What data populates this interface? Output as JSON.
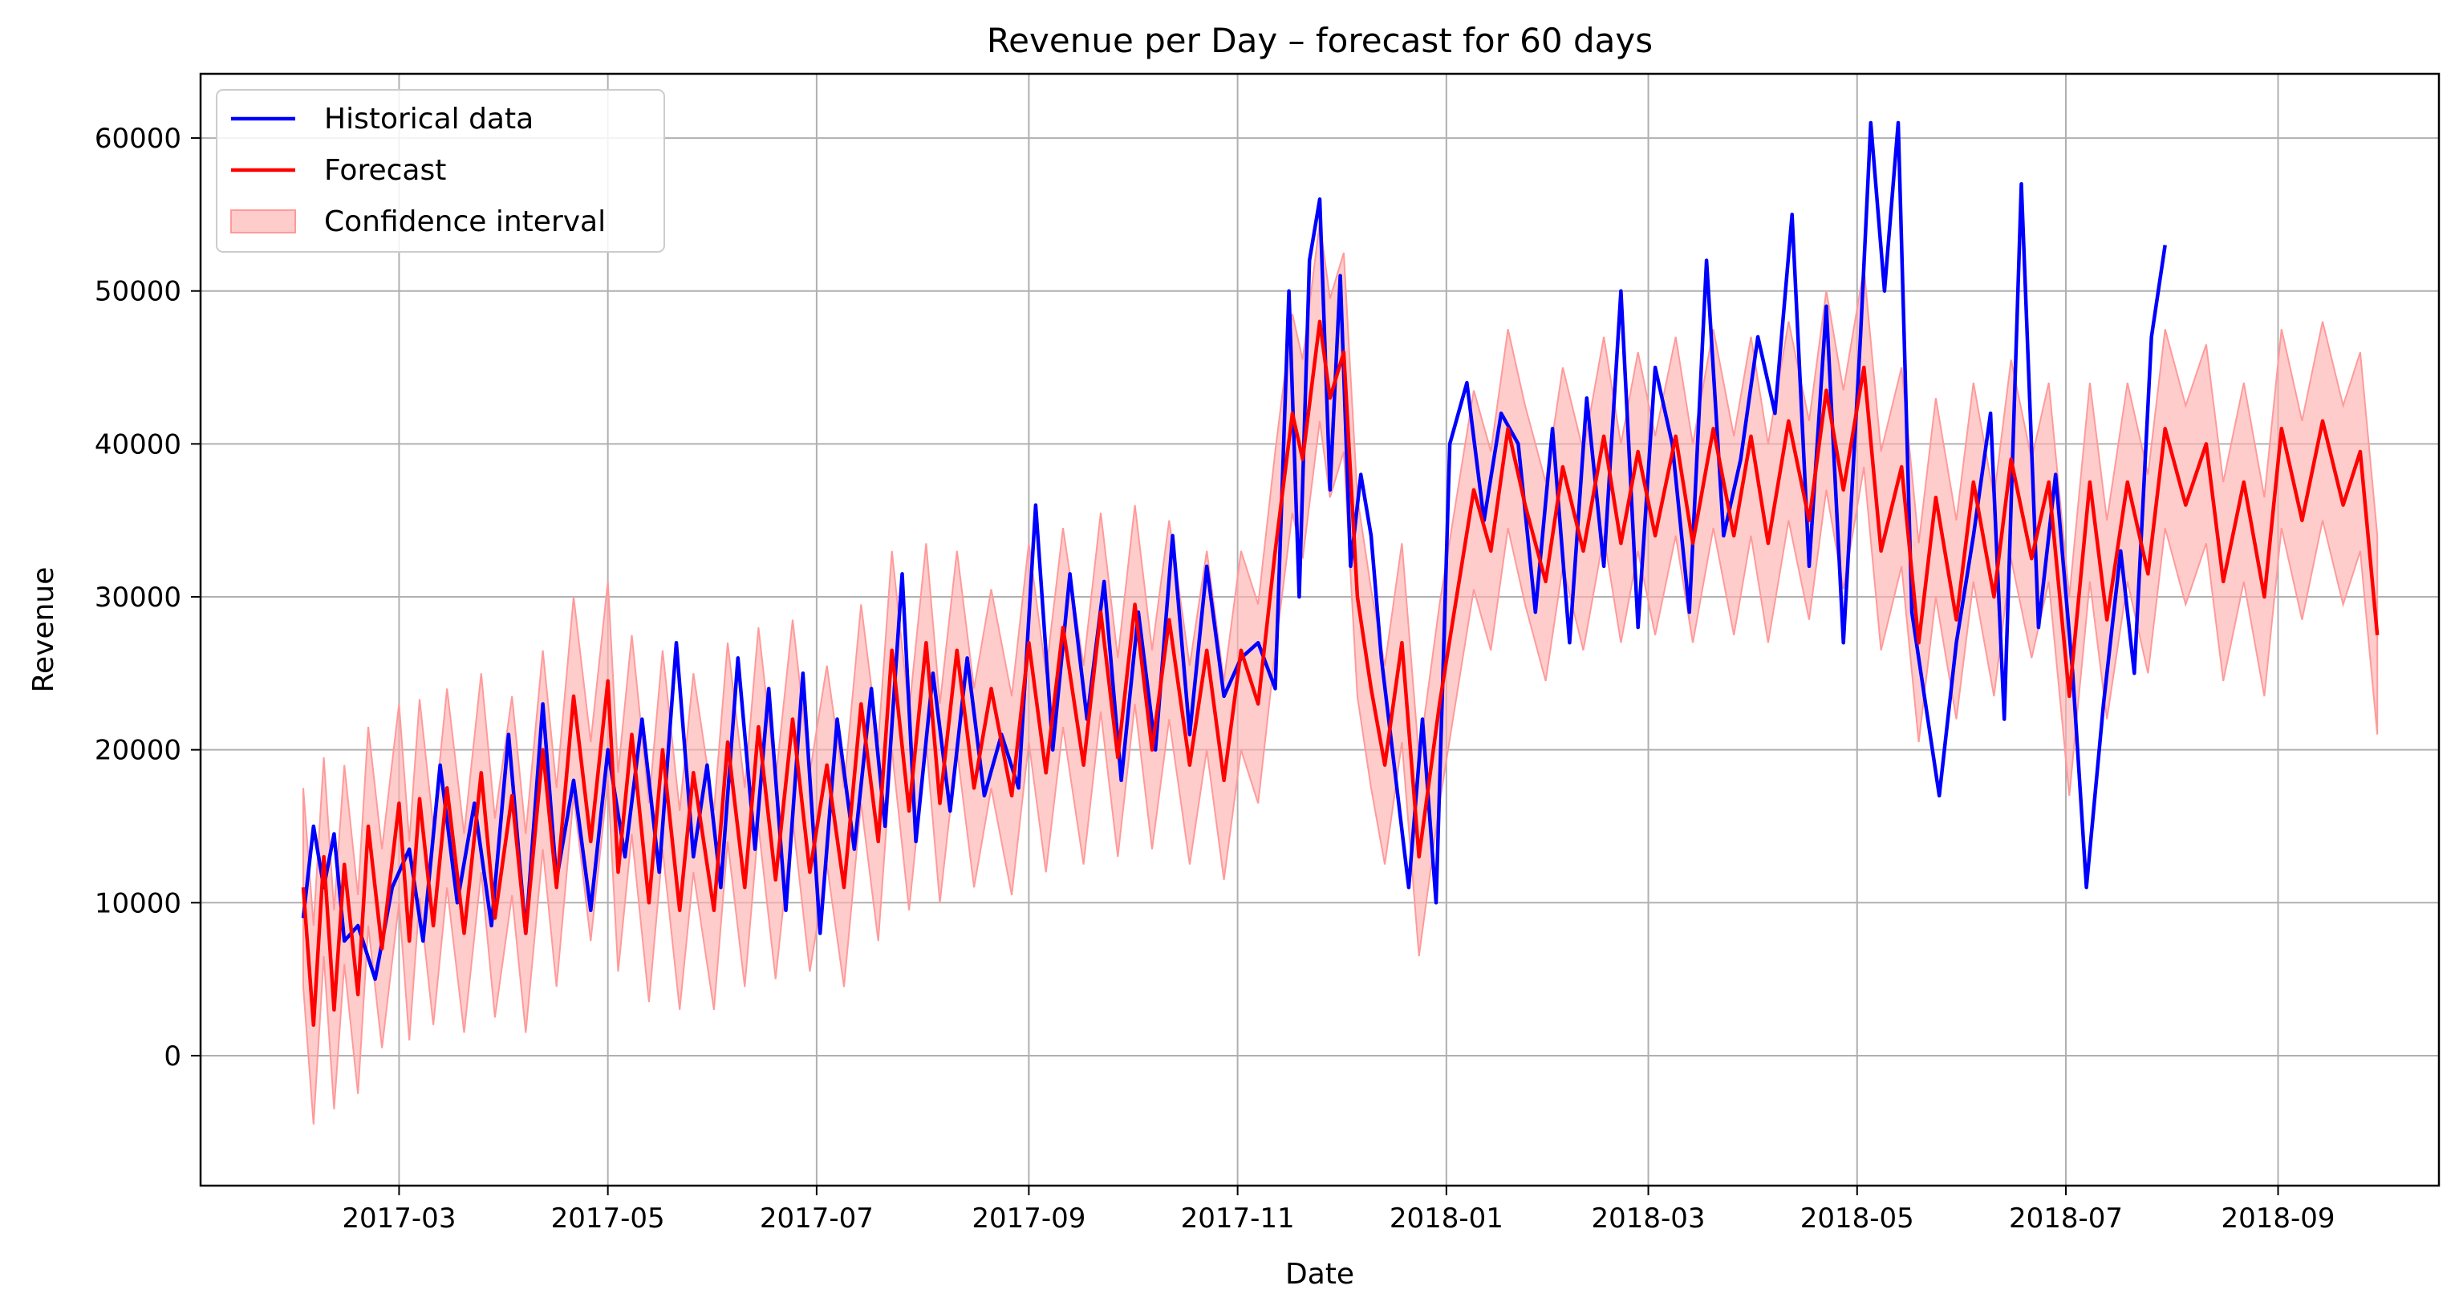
{
  "chart_data": {
    "type": "line",
    "title": "Revenue per Day – forecast for 60 days",
    "xlabel": "Date",
    "ylabel": "Revenue",
    "xlim": [
      "2017-01-02",
      "2018-10-18"
    ],
    "ylim": [
      -8500,
      64200
    ],
    "x_ticks": [
      "2017-03-01",
      "2017-05-01",
      "2017-07-01",
      "2017-09-01",
      "2017-11-01",
      "2018-01-01",
      "2018-03-01",
      "2018-05-01",
      "2018-07-01",
      "2018-09-01"
    ],
    "x_tick_labels": [
      "2017-03",
      "2017-05",
      "2017-07",
      "2017-09",
      "2017-11",
      "2018-01",
      "2018-03",
      "2018-05",
      "2018-07",
      "2018-09"
    ],
    "y_ticks": [
      0,
      10000,
      20000,
      30000,
      40000,
      50000,
      60000
    ],
    "y_tick_labels": [
      "0",
      "10000",
      "20000",
      "30000",
      "40000",
      "50000",
      "60000"
    ],
    "grid": true,
    "legend_position": "top-left",
    "colors": {
      "historical": "#0000ff",
      "forecast": "#ff0000",
      "band": "#ffb0b0"
    },
    "forecast_x": [
      "2017-02-01",
      "2017-02-04",
      "2017-02-07",
      "2017-02-10",
      "2017-02-13",
      "2017-02-17",
      "2017-02-20",
      "2017-02-24",
      "2017-03-01",
      "2017-03-04",
      "2017-03-07",
      "2017-03-11",
      "2017-03-15",
      "2017-03-20",
      "2017-03-25",
      "2017-03-29",
      "2017-04-03",
      "2017-04-07",
      "2017-04-12",
      "2017-04-16",
      "2017-04-21",
      "2017-04-26",
      "2017-05-01",
      "2017-05-04",
      "2017-05-08",
      "2017-05-13",
      "2017-05-17",
      "2017-05-22",
      "2017-05-26",
      "2017-06-01",
      "2017-06-05",
      "2017-06-10",
      "2017-06-14",
      "2017-06-19",
      "2017-06-24",
      "2017-06-29",
      "2017-07-04",
      "2017-07-09",
      "2017-07-14",
      "2017-07-19",
      "2017-07-23",
      "2017-07-28",
      "2017-08-02",
      "2017-08-06",
      "2017-08-11",
      "2017-08-16",
      "2017-08-21",
      "2017-08-27",
      "2017-09-01",
      "2017-09-06",
      "2017-09-11",
      "2017-09-17",
      "2017-09-22",
      "2017-09-27",
      "2017-10-02",
      "2017-10-07",
      "2017-10-12",
      "2017-10-18",
      "2017-10-23",
      "2017-10-28",
      "2017-11-02",
      "2017-11-07",
      "2017-11-12",
      "2017-11-17",
      "2017-11-20",
      "2017-11-25",
      "2017-11-28",
      "2017-12-02",
      "2017-12-06",
      "2017-12-10",
      "2017-12-14",
      "2017-12-19",
      "2017-12-24",
      "2017-12-30",
      "2018-01-04",
      "2018-01-09",
      "2018-01-14",
      "2018-01-19",
      "2018-01-24",
      "2018-01-30",
      "2018-02-04",
      "2018-02-10",
      "2018-02-16",
      "2018-02-21",
      "2018-02-26",
      "2018-03-03",
      "2018-03-09",
      "2018-03-14",
      "2018-03-20",
      "2018-03-26",
      "2018-03-31",
      "2018-04-05",
      "2018-04-11",
      "2018-04-17",
      "2018-04-22",
      "2018-04-27",
      "2018-05-03",
      "2018-05-08",
      "2018-05-14",
      "2018-05-19",
      "2018-05-24",
      "2018-05-30",
      "2018-06-04",
      "2018-06-10",
      "2018-06-15",
      "2018-06-21",
      "2018-06-26",
      "2018-07-02",
      "2018-07-08",
      "2018-07-13",
      "2018-07-19",
      "2018-07-25",
      "2018-07-30",
      "2018-08-05",
      "2018-08-11",
      "2018-08-16",
      "2018-08-22",
      "2018-08-28",
      "2018-09-02",
      "2018-09-08",
      "2018-09-14",
      "2018-09-20",
      "2018-09-25",
      "2018-09-30"
    ],
    "forecast_y": [
      11000,
      2000,
      13000,
      3000,
      12500,
      4000,
      15000,
      7000,
      16500,
      7500,
      16800,
      8500,
      17500,
      8000,
      18500,
      9000,
      17000,
      8000,
      20000,
      11000,
      23500,
      14000,
      24500,
      12000,
      21000,
      10000,
      20000,
      9500,
      18500,
      9500,
      20500,
      11000,
      21500,
      11500,
      22000,
      12000,
      19000,
      11000,
      23000,
      14000,
      26500,
      16000,
      27000,
      16500,
      26500,
      17500,
      24000,
      17000,
      27000,
      18500,
      28000,
      19000,
      29000,
      19500,
      29500,
      20000,
      28500,
      19000,
      26500,
      18000,
      26500,
      23000,
      33000,
      42000,
      39000,
      48000,
      43000,
      46000,
      30000,
      24000,
      19000,
      27000,
      13000,
      23000,
      30000,
      37000,
      33000,
      41000,
      36000,
      31000,
      38500,
      33000,
      40500,
      33500,
      39500,
      34000,
      40500,
      33500,
      41000,
      34000,
      40500,
      33500,
      41500,
      35000,
      43500,
      37000,
      45000,
      33000,
      38500,
      27000,
      36500,
      28500,
      37500,
      30000,
      39000,
      32500,
      37500,
      23500,
      37500,
      28500,
      37500,
      31500,
      41000,
      36000,
      40000,
      31000,
      37500,
      30000,
      41000,
      35000,
      41500,
      36000,
      39500,
      27500
    ],
    "band_half_width": 6500,
    "historical_x": [
      "2017-02-01",
      "2017-02-04",
      "2017-02-07",
      "2017-02-10",
      "2017-02-13",
      "2017-02-17",
      "2017-02-22",
      "2017-02-27",
      "2017-03-04",
      "2017-03-08",
      "2017-03-13",
      "2017-03-18",
      "2017-03-23",
      "2017-03-28",
      "2017-04-02",
      "2017-04-07",
      "2017-04-12",
      "2017-04-16",
      "2017-04-21",
      "2017-04-26",
      "2017-05-01",
      "2017-05-06",
      "2017-05-11",
      "2017-05-16",
      "2017-05-21",
      "2017-05-26",
      "2017-05-30",
      "2017-06-03",
      "2017-06-08",
      "2017-06-13",
      "2017-06-17",
      "2017-06-22",
      "2017-06-27",
      "2017-07-02",
      "2017-07-07",
      "2017-07-12",
      "2017-07-17",
      "2017-07-21",
      "2017-07-26",
      "2017-07-30",
      "2017-08-04",
      "2017-08-09",
      "2017-08-14",
      "2017-08-19",
      "2017-08-24",
      "2017-08-29",
      "2017-09-03",
      "2017-09-08",
      "2017-09-13",
      "2017-09-18",
      "2017-09-23",
      "2017-09-28",
      "2017-10-03",
      "2017-10-08",
      "2017-10-13",
      "2017-10-18",
      "2017-10-23",
      "2017-10-28",
      "2017-11-02",
      "2017-11-07",
      "2017-11-12",
      "2017-11-16",
      "2017-11-19",
      "2017-11-22",
      "2017-11-25",
      "2017-11-28",
      "2017-12-01",
      "2017-12-04",
      "2017-12-07",
      "2017-12-10",
      "2017-12-13",
      "2017-12-17",
      "2017-12-21",
      "2017-12-25",
      "2017-12-29",
      "2018-01-02",
      "2018-01-07",
      "2018-01-12",
      "2018-01-17",
      "2018-01-22",
      "2018-01-27",
      "2018-02-01",
      "2018-02-06",
      "2018-02-11",
      "2018-02-16",
      "2018-02-21",
      "2018-02-26",
      "2018-03-03",
      "2018-03-08",
      "2018-03-13",
      "2018-03-18",
      "2018-03-23",
      "2018-03-28",
      "2018-04-02",
      "2018-04-07",
      "2018-04-12",
      "2018-04-17",
      "2018-04-22",
      "2018-04-27",
      "2018-05-02",
      "2018-05-05",
      "2018-05-09",
      "2018-05-13",
      "2018-05-17",
      "2018-05-21",
      "2018-05-25",
      "2018-05-30",
      "2018-06-04",
      "2018-06-09",
      "2018-06-13",
      "2018-06-18",
      "2018-06-23",
      "2018-06-28",
      "2018-07-03",
      "2018-07-07",
      "2018-07-12",
      "2018-07-17",
      "2018-07-21",
      "2018-07-26",
      "2018-07-30"
    ],
    "historical_y": [
      9000,
      15000,
      11000,
      14500,
      7500,
      8500,
      5000,
      11000,
      13500,
      7500,
      19000,
      10000,
      16500,
      8500,
      21000,
      8000,
      23000,
      11500,
      18000,
      9500,
      20000,
      13000,
      22000,
      12000,
      27000,
      13000,
      19000,
      11000,
      26000,
      13500,
      24000,
      9500,
      25000,
      8000,
      22000,
      13500,
      24000,
      15000,
      31500,
      14000,
      25000,
      16000,
      26000,
      17000,
      21000,
      17500,
      36000,
      20000,
      31500,
      22000,
      31000,
      18000,
      29000,
      20000,
      34000,
      21000,
      32000,
      23500,
      26000,
      27000,
      24000,
      50000,
      30000,
      52000,
      56000,
      37000,
      51000,
      32000,
      38000,
      34000,
      26000,
      18500,
      11000,
      22000,
      10000,
      40000,
      44000,
      35000,
      42000,
      40000,
      29000,
      41000,
      27000,
      43000,
      32000,
      50000,
      28000,
      45000,
      40000,
      29000,
      52000,
      34000,
      39000,
      47000,
      42000,
      55000,
      32000,
      49000,
      27000,
      47000,
      61000,
      50000,
      61000,
      29000,
      23000,
      17000,
      27000,
      34000,
      42000,
      22000,
      57000,
      28000,
      38000,
      25000,
      11000,
      23000,
      33000,
      25000,
      47000,
      53000
    ]
  },
  "legend": {
    "historical": "Historical data",
    "forecast": "Forecast",
    "band": "Confidence interval"
  }
}
